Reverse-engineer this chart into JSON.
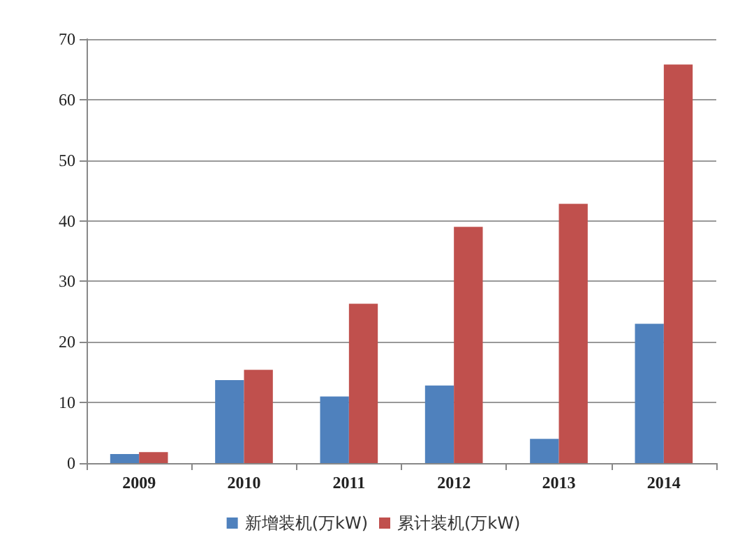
{
  "chart_data": {
    "type": "bar",
    "categories": [
      "2009",
      "2010",
      "2011",
      "2012",
      "2013",
      "2014"
    ],
    "series": [
      {
        "name": "新增装机(万kW)",
        "color": "#4f81bd",
        "values": [
          1.5,
          13.7,
          11,
          12.8,
          4,
          23
        ]
      },
      {
        "name": "累计装机(万kW)",
        "color": "#c0504d",
        "values": [
          1.8,
          15.4,
          26.3,
          39,
          42.8,
          65.8
        ]
      }
    ],
    "ylim": [
      0,
      70
    ],
    "yticks": [
      0,
      10,
      20,
      30,
      40,
      50,
      60,
      70
    ],
    "grid": "y",
    "legend": "bottom"
  }
}
